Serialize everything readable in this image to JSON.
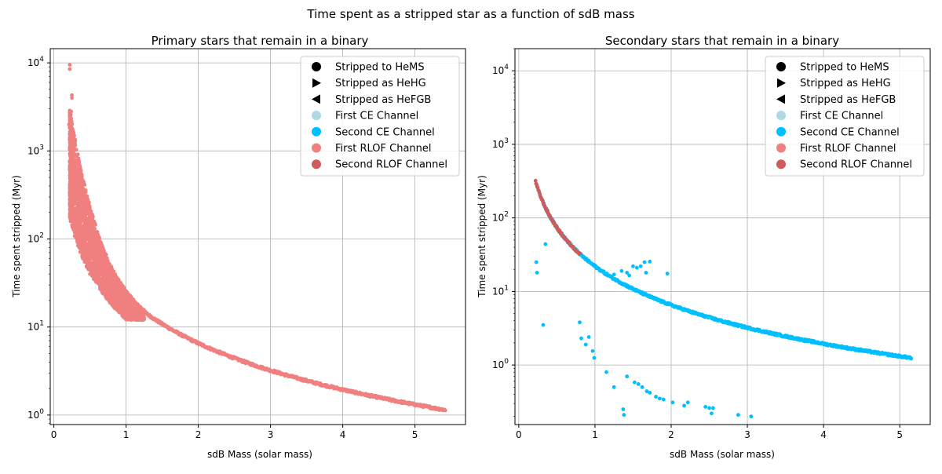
{
  "figure": {
    "suptitle": "Time spent as a stripped star as a function of sdB mass"
  },
  "legend_items": [
    {
      "label": "Stripped to HeMS",
      "marker": "circle",
      "color": "#000000"
    },
    {
      "label": "Stripped as HeHG",
      "marker": "triangle-right",
      "color": "#000000"
    },
    {
      "label": "Stripped as HeFGB",
      "marker": "triangle-left",
      "color": "#000000"
    },
    {
      "label": "First CE Channel",
      "marker": "circle",
      "color": "#add8e6"
    },
    {
      "label": "Second CE Channel",
      "marker": "circle",
      "color": "#00bfff"
    },
    {
      "label": "First RLOF Channel",
      "marker": "circle",
      "color": "#f08080"
    },
    {
      "label": "Second RLOF Channel",
      "marker": "circle",
      "color": "#cd5c5c"
    }
  ],
  "chart_data": [
    {
      "type": "scatter",
      "title": "Primary stars that remain in a binary",
      "xlabel": "sdB Mass (solar mass)",
      "ylabel": "Time spent stripped (Myr)",
      "yscale": "log",
      "xlim": [
        -0.05,
        5.7
      ],
      "ylim": [
        0.78,
        14500
      ],
      "xticks": [
        0,
        1,
        2,
        3,
        4,
        5
      ],
      "yticks": [
        1,
        10,
        100,
        1000,
        10000
      ],
      "grid": true,
      "legend_position": "top-right",
      "series": [
        {
          "name": "First RLOF Channel",
          "color": "#f08080",
          "marker": "circle",
          "curve": {
            "x_range": [
              0.22,
              5.42
            ],
            "relation": "t ≈ 22 × M^-1.75 Myr"
          },
          "scatter_band": {
            "x_range": [
              0.22,
              1.25
            ],
            "t_min": 12,
            "t_max": 9500
          },
          "outliers": [
            [
              0.22,
              9500
            ],
            [
              0.22,
              8500
            ],
            [
              0.25,
              4300
            ],
            [
              0.25,
              4000
            ],
            [
              0.21,
              2000
            ],
            [
              0.24,
              2800
            ],
            [
              0.5,
              40
            ],
            [
              0.55,
              45
            ],
            [
              1.22,
              12
            ]
          ]
        }
      ]
    },
    {
      "type": "scatter",
      "title": "Secondary stars that remain in a binary",
      "xlabel": "sdB Mass (solar mass)",
      "ylabel": "Time spent stripped (Myr)",
      "yscale": "log",
      "xlim": [
        -0.05,
        5.4
      ],
      "ylim": [
        0.155,
        20000
      ],
      "xticks": [
        0,
        1,
        2,
        3,
        4,
        5
      ],
      "yticks": [
        1,
        10,
        100,
        1000,
        10000
      ],
      "grid": true,
      "legend_position": "top-right",
      "series": [
        {
          "name": "Second CE Channel",
          "color": "#00bfff",
          "marker": "circle",
          "curve": {
            "x_range": [
              0.3,
              5.15
            ],
            "relation": "t ≈ 22 × M^-1.75 Myr"
          },
          "outliers": [
            [
              0.23,
              25
            ],
            [
              0.24,
              18
            ],
            [
              0.35,
              44
            ],
            [
              0.32,
              3.5
            ],
            [
              1.25,
              17
            ],
            [
              1.35,
              19
            ],
            [
              1.42,
              18
            ],
            [
              1.45,
              16.5
            ],
            [
              1.5,
              22
            ],
            [
              1.55,
              21
            ],
            [
              1.6,
              22
            ],
            [
              1.65,
              25
            ],
            [
              1.67,
              18
            ],
            [
              1.72,
              25.5
            ],
            [
              1.95,
              17.5
            ],
            [
              0.8,
              3.8
            ],
            [
              0.82,
              2.3
            ],
            [
              0.88,
              1.9
            ],
            [
              0.92,
              2.4
            ],
            [
              0.97,
              1.55
            ],
            [
              0.99,
              1.25
            ],
            [
              1.15,
              0.8
            ],
            [
              1.25,
              0.5
            ],
            [
              1.37,
              0.25
            ],
            [
              1.38,
              0.21
            ],
            [
              1.42,
              0.7
            ],
            [
              1.52,
              0.58
            ],
            [
              1.57,
              0.55
            ],
            [
              1.62,
              0.5
            ],
            [
              1.68,
              0.44
            ],
            [
              1.72,
              0.42
            ],
            [
              1.8,
              0.37
            ],
            [
              1.85,
              0.35
            ],
            [
              1.9,
              0.34
            ],
            [
              2.02,
              0.31
            ],
            [
              2.17,
              0.28
            ],
            [
              2.22,
              0.31
            ],
            [
              2.45,
              0.27
            ],
            [
              2.5,
              0.26
            ],
            [
              2.55,
              0.26
            ],
            [
              2.53,
              0.22
            ],
            [
              2.88,
              0.21
            ],
            [
              3.05,
              0.2
            ]
          ]
        },
        {
          "name": "Second RLOF Channel",
          "color": "#cd5c5c",
          "marker": "circle",
          "curve": {
            "x_range": [
              0.22,
              0.8
            ],
            "relation": "t ≈ 22 × M^-1.75 Myr"
          }
        }
      ]
    }
  ]
}
